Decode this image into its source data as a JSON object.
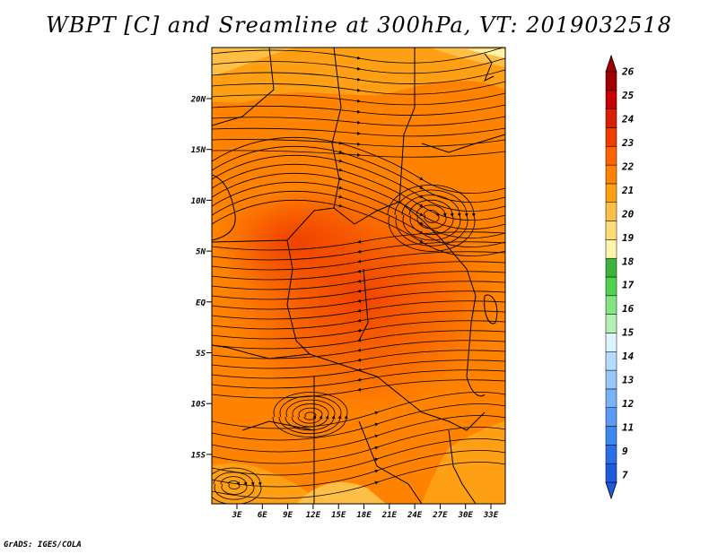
{
  "title": "WBPT [C] and Sreamline at 300hPa, VT: 2019032518",
  "footer": "GrADS: IGES/COLA",
  "map": {
    "lat_labels": [
      "20N",
      "15N",
      "10N",
      "5N",
      "EQ",
      "5S",
      "10S",
      "15S"
    ],
    "lon_labels": [
      "3E",
      "6E",
      "9E",
      "12E",
      "15E",
      "18E",
      "21E",
      "24E",
      "27E",
      "30E",
      "33E"
    ]
  },
  "colorbar": {
    "labels": [
      "7",
      "9",
      "11",
      "12",
      "13",
      "14",
      "15",
      "16",
      "17",
      "18",
      "19",
      "20",
      "21",
      "22",
      "23",
      "24",
      "25",
      "26"
    ],
    "colors": [
      "#1e5adc",
      "#2a6ee8",
      "#3c87f0",
      "#5a9cf5",
      "#78b2f8",
      "#96c8fb",
      "#b4dcfd",
      "#dcf4ff",
      "#b4f0b4",
      "#82e682",
      "#50d250",
      "#3cb43c",
      "#fff5aa",
      "#ffdc78",
      "#ffbe46",
      "#ffa014",
      "#ff8200",
      "#ff6400",
      "#f03c00",
      "#dc1e00",
      "#c80000",
      "#a00000"
    ]
  }
}
